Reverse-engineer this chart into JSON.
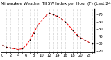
{
  "title": "Milwaukee Weather THSW Index per Hour (F) (Last 24 Hours)",
  "bg_color": "#ffffff",
  "plot_bg_color": "#ffffff",
  "line_color": "#ff0000",
  "marker_color": "#000000",
  "grid_color": "#b0b0b0",
  "x_values": [
    0,
    1,
    2,
    3,
    4,
    5,
    6,
    7,
    8,
    9,
    10,
    11,
    12,
    13,
    14,
    15,
    16,
    17,
    18,
    19,
    20,
    21,
    22,
    23
  ],
  "y_values": [
    28,
    25,
    24,
    23,
    22,
    23,
    27,
    35,
    45,
    55,
    62,
    68,
    72,
    70,
    68,
    65,
    60,
    55,
    48,
    42,
    38,
    35,
    32,
    30
  ],
  "ylim": [
    18,
    78
  ],
  "xlim": [
    -0.5,
    23.5
  ],
  "yticks": [
    20,
    30,
    40,
    50,
    60,
    70
  ],
  "tick_label_fontsize": 3.8,
  "title_fontsize": 4.2,
  "border_color": "#000000",
  "right_border_color": "#000000"
}
